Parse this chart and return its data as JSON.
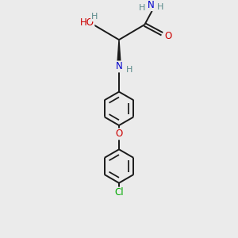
{
  "bg_color": "#ebebeb",
  "bond_color": "#1a1a1a",
  "N_color": "#0000cc",
  "O_color": "#cc0000",
  "Cl_color": "#00aa00",
  "H_color": "#5a8a8a",
  "line_width": 1.4,
  "figsize": [
    3.0,
    3.0
  ],
  "dpi": 100,
  "xlim": [
    2.5,
    7.5
  ],
  "ylim": [
    0.3,
    10.3
  ]
}
